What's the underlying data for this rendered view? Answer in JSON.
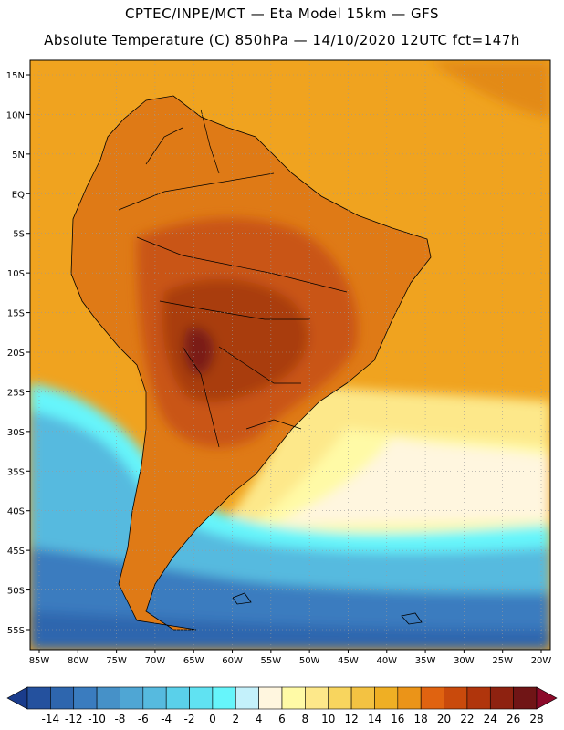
{
  "title_line1": "CPTEC/INPE/MCT —  Eta Model 15km — GFS",
  "title_line2": "Absolute Temperature (C) 850hPa — 14/10/2020 12UTC fct=147h",
  "lat_labels": [
    "15N",
    "10N",
    "5N",
    "EQ",
    "5S",
    "10S",
    "15S",
    "20S",
    "25S",
    "30S",
    "35S",
    "40S",
    "45S",
    "50S",
    "55S"
  ],
  "lat_values": [
    15,
    10,
    5,
    0,
    -5,
    -10,
    -15,
    -20,
    -25,
    -30,
    -35,
    -40,
    -45,
    -50,
    -55
  ],
  "lon_labels": [
    "85W",
    "80W",
    "75W",
    "70W",
    "65W",
    "60W",
    "55W",
    "50W",
    "45W",
    "40W",
    "35W",
    "30W",
    "25W",
    "20W"
  ],
  "lon_values": [
    -85,
    -80,
    -75,
    -70,
    -65,
    -60,
    -55,
    -50,
    -45,
    -40,
    -35,
    -30,
    -25,
    -20
  ],
  "colorbar": {
    "labels": [
      "-14",
      "-12",
      "-10",
      "-8",
      "-6",
      "-4",
      "-2",
      "0",
      "2",
      "4",
      "6",
      "8",
      "10",
      "12",
      "14",
      "16",
      "18",
      "20",
      "22",
      "24",
      "26",
      "28"
    ],
    "colors": [
      "#1a3c8c",
      "#24519e",
      "#2e66ae",
      "#3a7cbf",
      "#4691c8",
      "#4fa6d4",
      "#56badf",
      "#5ad0ea",
      "#60e2f2",
      "#66f5fb",
      "#c4f1fb",
      "#fff6df",
      "#fffaa6",
      "#fde88a",
      "#f8d55e",
      "#f3c242",
      "#efaf24",
      "#eb9418",
      "#e06310",
      "#c94a0c",
      "#b0350c",
      "#8e2210",
      "#701516",
      "#8c0a2a"
    ]
  },
  "map_colors": {
    "ocean_warm": "#f0a31f",
    "ocean_far_north": "#e38a16",
    "land_warm": "#df7a16",
    "land_hot": "#c95412",
    "land_hotter": "#a93d10",
    "land_hottest": "#7a1e12",
    "south_yellow": "#fde88a",
    "south_pale": "#fffaa6",
    "south_cream": "#fff6df",
    "cold_cyan": "#66f5fb",
    "cold_sky": "#56badf",
    "cold_blue": "#3a7cbf",
    "cold_deep": "#2e66ae"
  }
}
